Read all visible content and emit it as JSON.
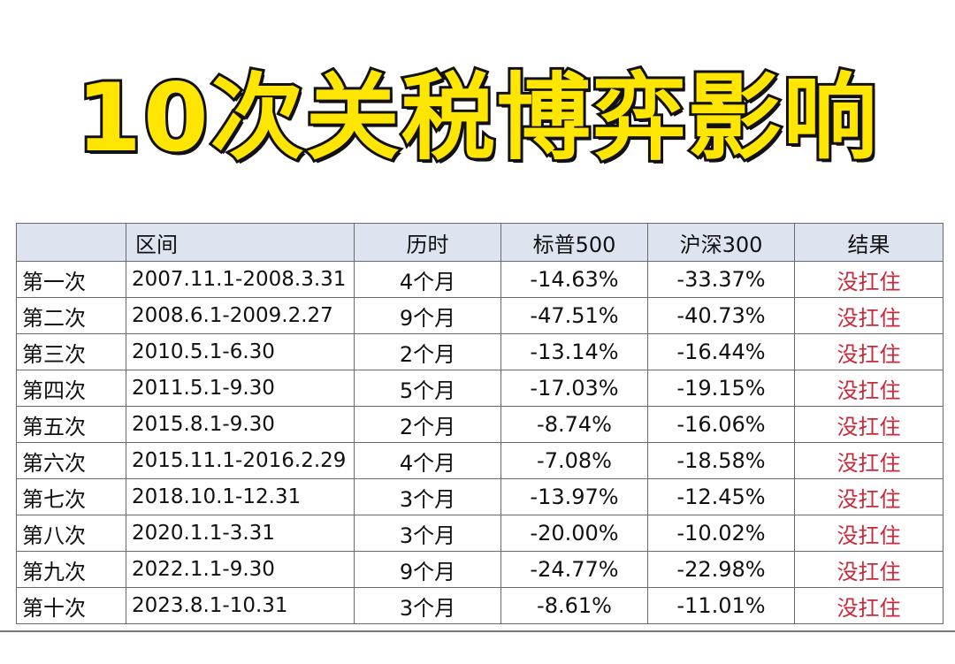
{
  "title": "10次关税博弈影响",
  "table": {
    "headers": [
      "",
      "区间",
      "历时",
      "标普500",
      "沪深300",
      "结果"
    ],
    "rows": [
      {
        "round": "第一次",
        "range": "2007.11.1-2008.3.31",
        "duration": "4个月",
        "sp500": "-14.63%",
        "hs300": "-33.37%",
        "result": "没扛住"
      },
      {
        "round": "第二次",
        "range": "2008.6.1-2009.2.27",
        "duration": "9个月",
        "sp500": "-47.51%",
        "hs300": "-40.73%",
        "result": "没扛住"
      },
      {
        "round": "第三次",
        "range": "2010.5.1-6.30",
        "duration": "2个月",
        "sp500": "-13.14%",
        "hs300": "-16.44%",
        "result": "没扛住"
      },
      {
        "round": "第四次",
        "range": "2011.5.1-9.30",
        "duration": "5个月",
        "sp500": "-17.03%",
        "hs300": "-19.15%",
        "result": "没扛住"
      },
      {
        "round": "第五次",
        "range": "2015.8.1-9.30",
        "duration": "2个月",
        "sp500": "-8.74%",
        "hs300": "-16.06%",
        "result": "没扛住"
      },
      {
        "round": "第六次",
        "range": "2015.11.1-2016.2.29",
        "duration": "4个月",
        "sp500": "-7.08%",
        "hs300": "-18.58%",
        "result": "没扛住"
      },
      {
        "round": "第七次",
        "range": "2018.10.1-12.31",
        "duration": "3个月",
        "sp500": "-13.97%",
        "hs300": "-12.45%",
        "result": "没扛住"
      },
      {
        "round": "第八次",
        "range": "2020.1.1-3.31",
        "duration": "3个月",
        "sp500": "-20.00%",
        "hs300": "-10.02%",
        "result": "没扛住"
      },
      {
        "round": "第九次",
        "range": "2022.1.1-9.30",
        "duration": "9个月",
        "sp500": "-24.77%",
        "hs300": "-22.98%",
        "result": "没扛住"
      },
      {
        "round": "第十次",
        "range": "2023.8.1-10.31",
        "duration": "3个月",
        "sp500": "-8.61%",
        "hs300": "-11.01%",
        "result": "没扛住"
      }
    ]
  },
  "colors": {
    "title_fill": "#ffe600",
    "title_outline": "#111111",
    "header_bg": "#dde4ef",
    "result_text": "#c92a3a",
    "grid": "#6a6a6a"
  }
}
